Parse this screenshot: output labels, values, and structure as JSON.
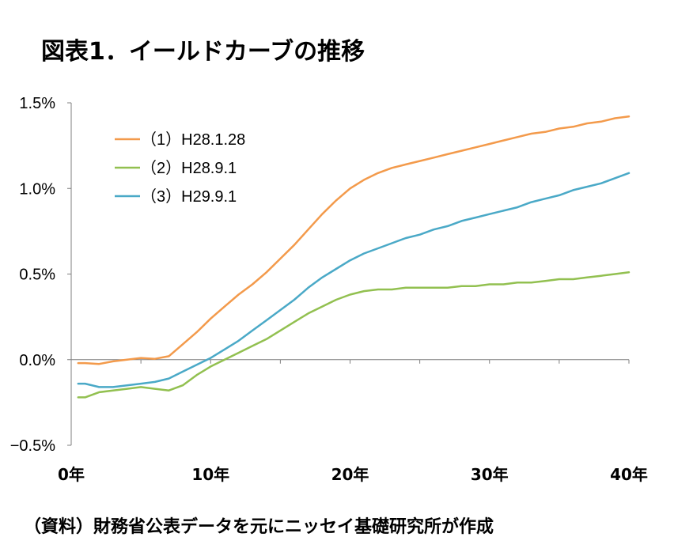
{
  "title": "図表1．イールドカーブの推移",
  "source": "（資料）財務省公表データを元にニッセイ基礎研究所が作成",
  "chart_data": {
    "type": "line",
    "xlim": [
      0,
      40
    ],
    "ylim": [
      -0.5,
      1.5
    ],
    "x_ticks": [
      {
        "value": 0,
        "label": "0年"
      },
      {
        "value": 10,
        "label": "10年"
      },
      {
        "value": 20,
        "label": "20年"
      },
      {
        "value": 30,
        "label": "30年"
      },
      {
        "value": 40,
        "label": "40年"
      }
    ],
    "y_ticks": [
      {
        "value": 1.5,
        "label": "1.5%"
      },
      {
        "value": 1.0,
        "label": "1.0%"
      },
      {
        "value": 0.5,
        "label": "0.5%"
      },
      {
        "value": 0.0,
        "label": "0.0%"
      },
      {
        "value": -0.5,
        "label": "−0.5%"
      }
    ],
    "legend_position": "top-left",
    "series": [
      {
        "name": "（1）H28.1.28",
        "color": "#f39a4b",
        "x": [
          0.5,
          1,
          2,
          3,
          4,
          5,
          6,
          7,
          8,
          9,
          10,
          11,
          12,
          13,
          14,
          15,
          16,
          17,
          18,
          19,
          20,
          21,
          22,
          23,
          24,
          25,
          26,
          27,
          28,
          29,
          30,
          31,
          32,
          33,
          34,
          35,
          36,
          37,
          38,
          39,
          40
        ],
        "y": [
          -0.02,
          -0.02,
          -0.025,
          -0.01,
          0.0,
          0.01,
          0.005,
          0.02,
          0.09,
          0.16,
          0.24,
          0.31,
          0.38,
          0.44,
          0.51,
          0.59,
          0.67,
          0.76,
          0.85,
          0.93,
          1.0,
          1.05,
          1.09,
          1.12,
          1.14,
          1.16,
          1.18,
          1.2,
          1.22,
          1.24,
          1.26,
          1.28,
          1.3,
          1.32,
          1.33,
          1.35,
          1.36,
          1.38,
          1.39,
          1.41,
          1.42
        ]
      },
      {
        "name": "（2）H28.9.1",
        "color": "#92c050",
        "x": [
          0.5,
          1,
          2,
          3,
          4,
          5,
          6,
          7,
          8,
          9,
          10,
          11,
          12,
          13,
          14,
          15,
          16,
          17,
          18,
          19,
          20,
          21,
          22,
          23,
          24,
          25,
          26,
          27,
          28,
          29,
          30,
          31,
          32,
          33,
          34,
          35,
          36,
          37,
          38,
          39,
          40
        ],
        "y": [
          -0.22,
          -0.22,
          -0.19,
          -0.18,
          -0.17,
          -0.16,
          -0.17,
          -0.18,
          -0.15,
          -0.09,
          -0.04,
          0.0,
          0.04,
          0.08,
          0.12,
          0.17,
          0.22,
          0.27,
          0.31,
          0.35,
          0.38,
          0.4,
          0.41,
          0.41,
          0.42,
          0.42,
          0.42,
          0.42,
          0.43,
          0.43,
          0.44,
          0.44,
          0.45,
          0.45,
          0.46,
          0.47,
          0.47,
          0.48,
          0.49,
          0.5,
          0.51
        ]
      },
      {
        "name": "（3）H29.9.1",
        "color": "#4aa9c7",
        "x": [
          0.5,
          1,
          2,
          3,
          4,
          5,
          6,
          7,
          8,
          9,
          10,
          11,
          12,
          13,
          14,
          15,
          16,
          17,
          18,
          19,
          20,
          21,
          22,
          23,
          24,
          25,
          26,
          27,
          28,
          29,
          30,
          31,
          32,
          33,
          34,
          35,
          36,
          37,
          38,
          39,
          40
        ],
        "y": [
          -0.14,
          -0.14,
          -0.16,
          -0.16,
          -0.15,
          -0.14,
          -0.13,
          -0.11,
          -0.07,
          -0.03,
          0.01,
          0.06,
          0.11,
          0.17,
          0.23,
          0.29,
          0.35,
          0.42,
          0.48,
          0.53,
          0.58,
          0.62,
          0.65,
          0.68,
          0.71,
          0.73,
          0.76,
          0.78,
          0.81,
          0.83,
          0.85,
          0.87,
          0.89,
          0.92,
          0.94,
          0.96,
          0.99,
          1.01,
          1.03,
          1.06,
          1.09
        ]
      }
    ]
  }
}
